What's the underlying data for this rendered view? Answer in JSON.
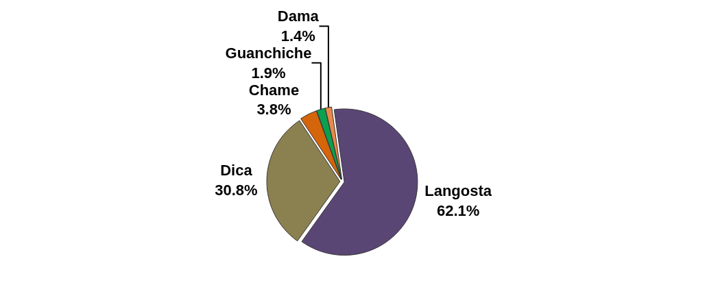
{
  "chart_data": {
    "type": "pie",
    "categories": [
      "Langosta",
      "Dica",
      "Chame",
      "Guanchiche",
      "Dama"
    ],
    "values": [
      62.1,
      30.8,
      3.8,
      1.9,
      1.4
    ],
    "value_labels": [
      "62.1%",
      "30.8%",
      "3.8%",
      "1.9%",
      "1.4%"
    ],
    "colors": [
      "#5a4675",
      "#8b8050",
      "#d4650a",
      "#0aa050",
      "#e8894a"
    ],
    "legend": false
  }
}
